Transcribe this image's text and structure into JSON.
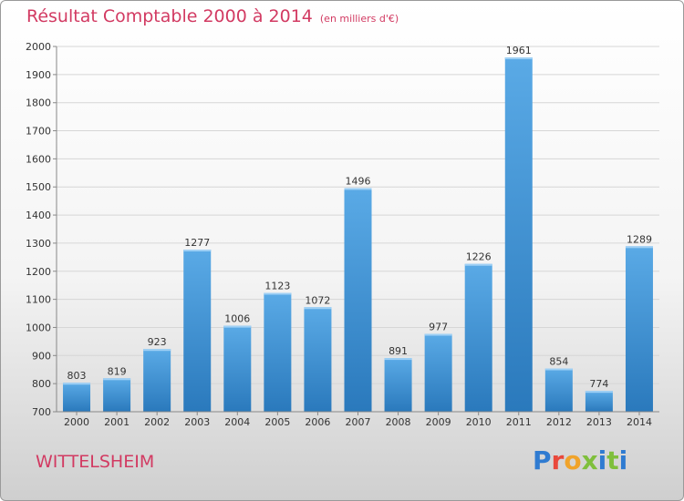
{
  "header": {
    "title": "Résultat Comptable 2000 à 2014",
    "unit": "(en milliers d'€)"
  },
  "footer": {
    "city": "WITTELSHEIM",
    "logo": "Proxiti"
  },
  "colors": {
    "accent": "#d23a62",
    "bar_light": "#5aaae6",
    "bar_dark": "#2a79bc"
  },
  "chart_data": {
    "type": "bar",
    "title": "Résultat Comptable 2000 à 2014",
    "subtitle": "(en milliers d'€)",
    "categories": [
      "2000",
      "2001",
      "2002",
      "2003",
      "2004",
      "2005",
      "2006",
      "2007",
      "2008",
      "2009",
      "2010",
      "2011",
      "2012",
      "2013",
      "2014"
    ],
    "values": [
      803,
      819,
      923,
      1277,
      1006,
      1123,
      1072,
      1496,
      891,
      977,
      1226,
      1961,
      854,
      774,
      1289
    ],
    "ylim": [
      700,
      2000
    ],
    "yticks": [
      700,
      800,
      900,
      1000,
      1100,
      1200,
      1300,
      1400,
      1500,
      1600,
      1700,
      1800,
      1900,
      2000
    ],
    "grid": true,
    "xlabel": "",
    "ylabel": ""
  }
}
